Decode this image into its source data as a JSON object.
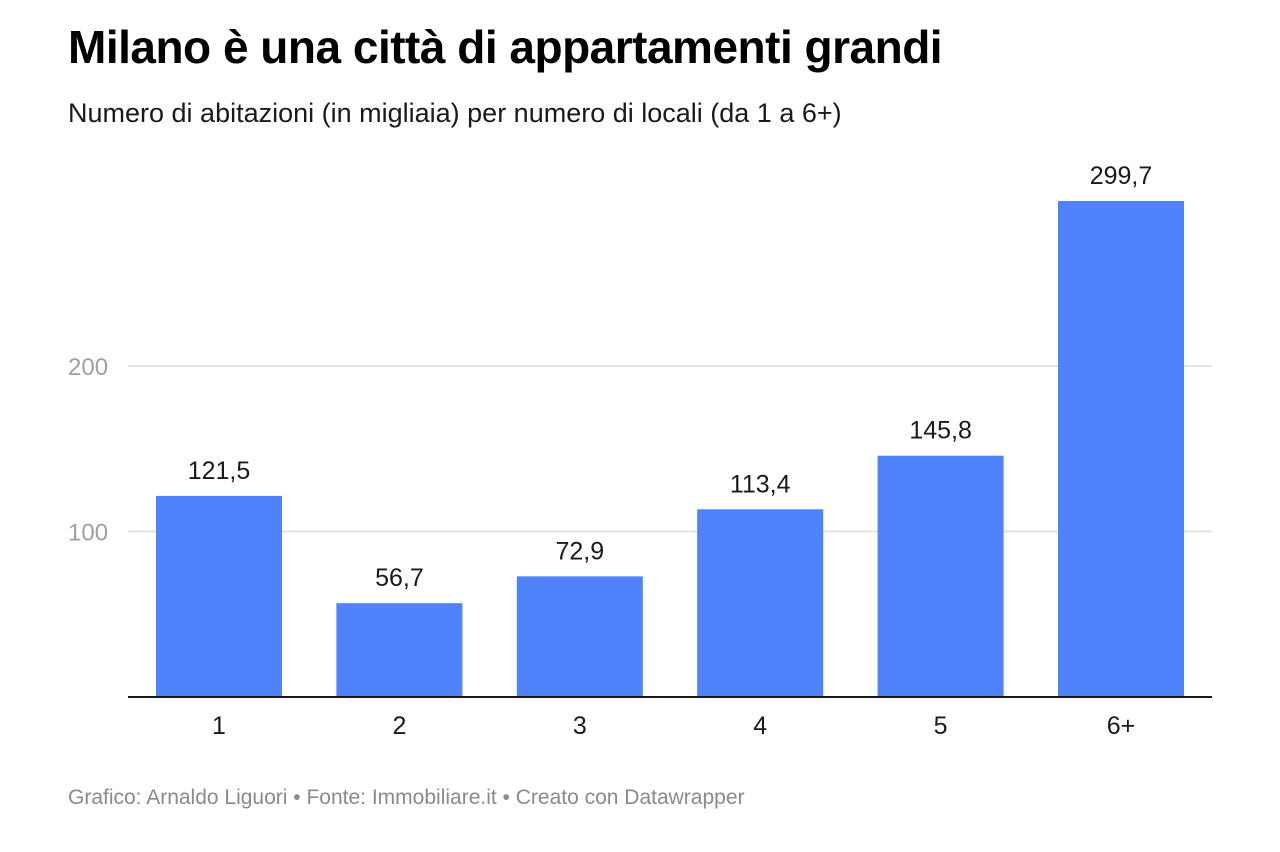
{
  "header": {
    "title": "Milano è una città di appartamenti grandi",
    "subtitle": "Numero di abitazioni (in migliaia) per numero di locali (da 1 a 6+)"
  },
  "footer": {
    "credit": "Grafico: Arnaldo Liguori • Fonte: Immobiliare.it • Creato con Datawrapper"
  },
  "colors": {
    "bar": "#5082fb",
    "gridline": "#e3e3e3",
    "axis_line": "#1a1a1a",
    "tick_label": "#a0a0a0",
    "value_label": "#1a1a1a",
    "footer": "#8a8a8a"
  },
  "chart_data": {
    "type": "bar",
    "title": "Milano è una città di appartamenti grandi",
    "subtitle": "Numero di abitazioni (in migliaia) per numero di locali (da 1 a 6+)",
    "xlabel": "",
    "ylabel": "",
    "categories": [
      "1",
      "2",
      "3",
      "4",
      "5",
      "6+"
    ],
    "values": [
      121.5,
      56.7,
      72.9,
      113.4,
      145.8,
      299.7
    ],
    "value_labels": [
      "121,5",
      "56,7",
      "72,9",
      "113,4",
      "145,8",
      "299,7"
    ],
    "ylim": [
      0,
      300
    ],
    "yticks": [
      100,
      200
    ],
    "ytick_labels": [
      "100",
      "200"
    ],
    "grid": true,
    "legend": "none"
  }
}
